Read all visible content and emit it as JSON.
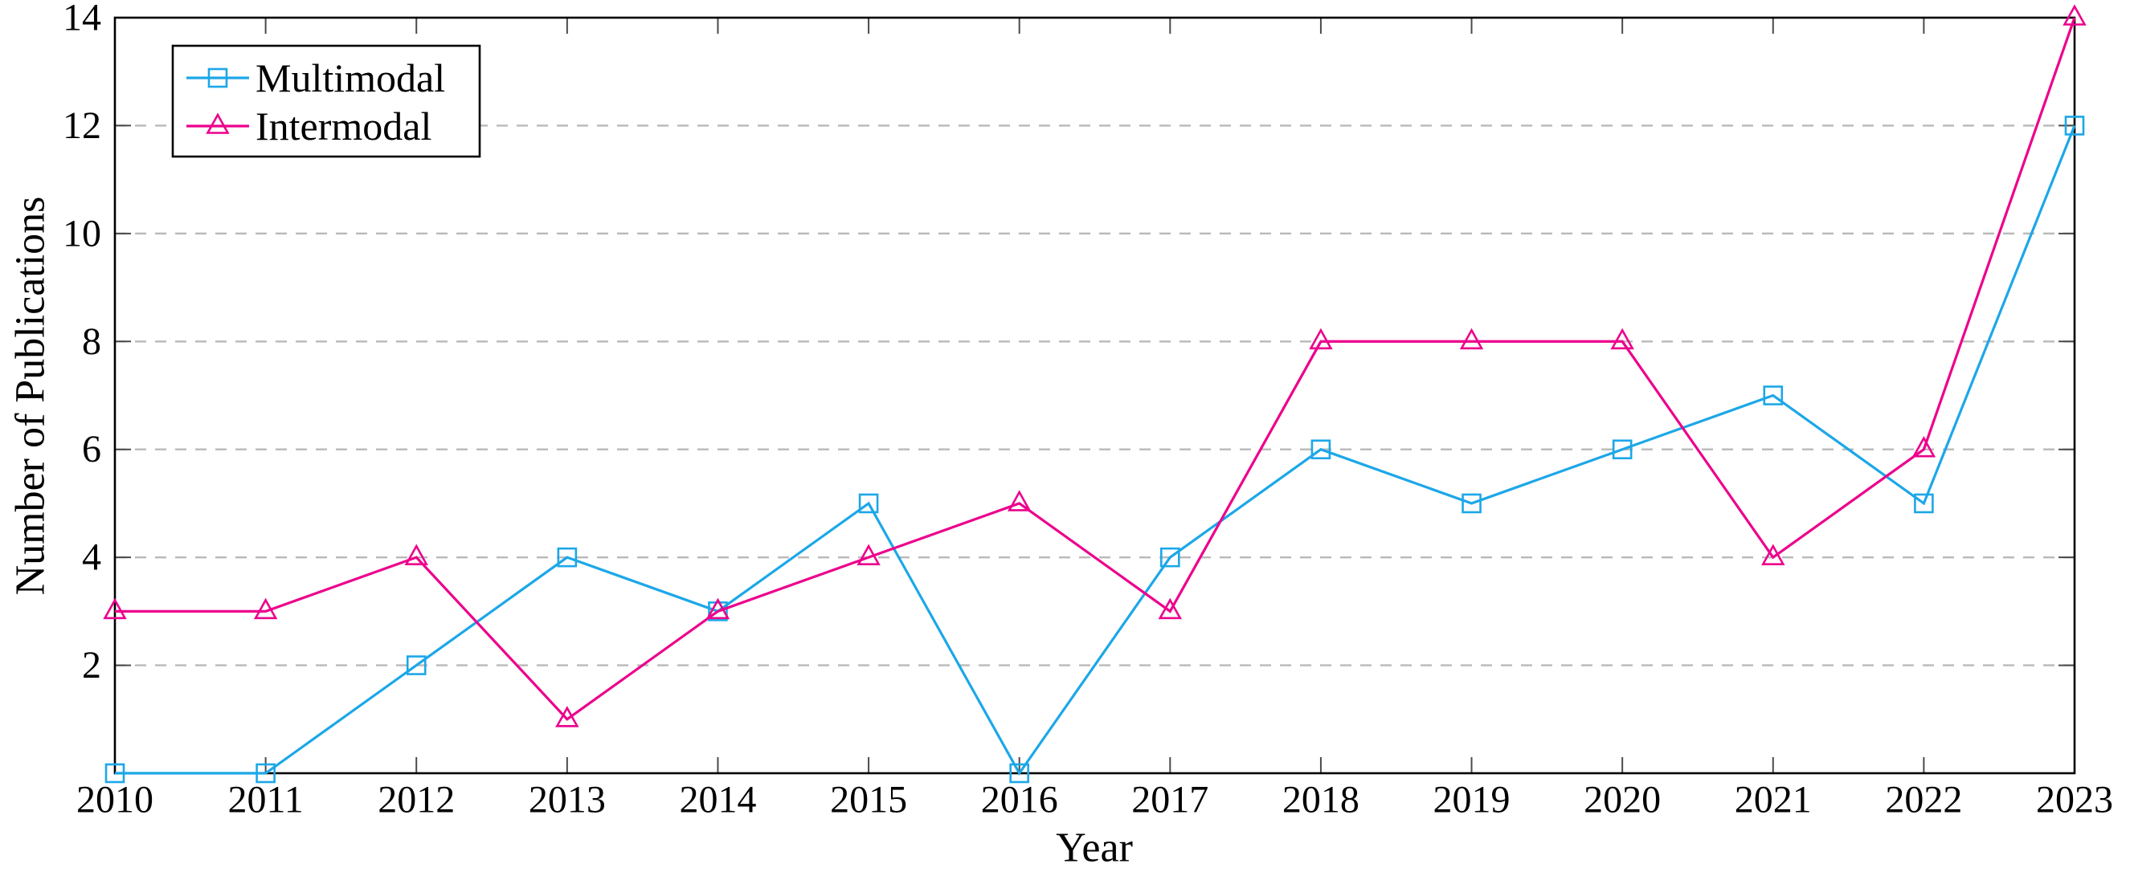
{
  "chart_data": {
    "type": "line",
    "x": [
      2010,
      2011,
      2012,
      2013,
      2014,
      2015,
      2016,
      2017,
      2018,
      2019,
      2020,
      2021,
      2022,
      2023
    ],
    "series": [
      {
        "name": "Multimodal",
        "marker": "square",
        "color": "#1CA7E8",
        "values": [
          0,
          0,
          2,
          4,
          3,
          5,
          0,
          4,
          6,
          5,
          6,
          7,
          5,
          12
        ]
      },
      {
        "name": "Intermodal",
        "marker": "triangle",
        "color": "#EC008C",
        "values": [
          3,
          3,
          4,
          1,
          3,
          4,
          5,
          3,
          8,
          8,
          8,
          4,
          6,
          14
        ]
      }
    ],
    "xlabel": "Year",
    "ylabel": "Number of Publications",
    "ylim": [
      0,
      14
    ],
    "yticks": [
      2,
      4,
      6,
      8,
      10,
      12,
      14
    ],
    "grid": "horizontal-dashed",
    "legend_position": "top-left"
  },
  "colors": {
    "background": "#ffffff",
    "axis": "#000000",
    "gridline": "#b9b9b9",
    "tick": "#4a4a4a",
    "text": "#000000"
  }
}
